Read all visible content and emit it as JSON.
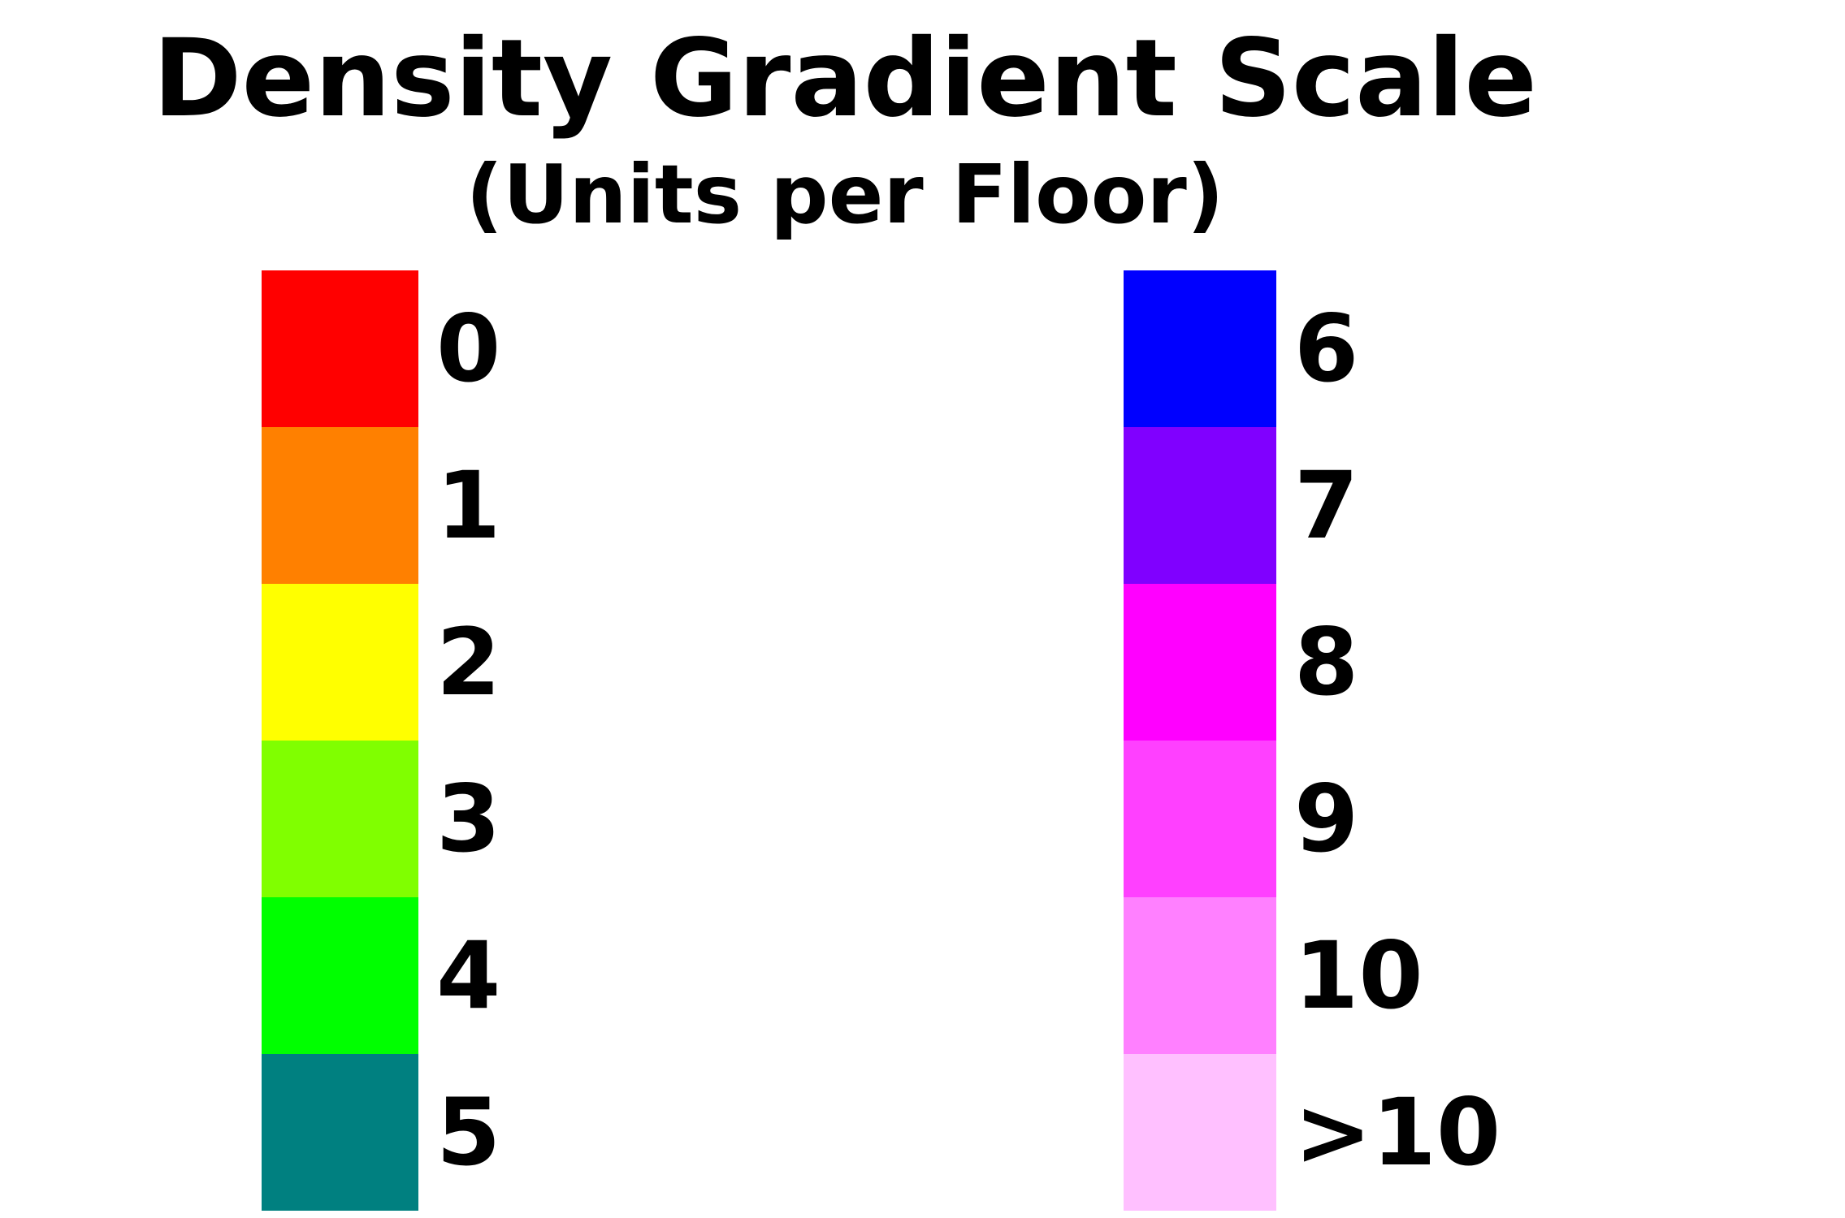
{
  "title": "Density Gradient Scale",
  "subtitle": "(Units per Floor)",
  "legend": {
    "left": [
      {
        "label": "0",
        "color": "#ff0000"
      },
      {
        "label": "1",
        "color": "#ff8000"
      },
      {
        "label": "2",
        "color": "#ffff00"
      },
      {
        "label": "3",
        "color": "#80ff00"
      },
      {
        "label": "4",
        "color": "#00ff00"
      },
      {
        "label": "5",
        "color": "#008080"
      }
    ],
    "right": [
      {
        "label": "6",
        "color": "#0000ff"
      },
      {
        "label": "7",
        "color": "#8000ff"
      },
      {
        "label": "8",
        "color": "#ff00ff"
      },
      {
        "label": "9",
        "color": "#ff40ff"
      },
      {
        "label": "10",
        "color": "#ff80ff"
      },
      {
        "label": ">10",
        "color": "#ffc0ff"
      }
    ]
  }
}
